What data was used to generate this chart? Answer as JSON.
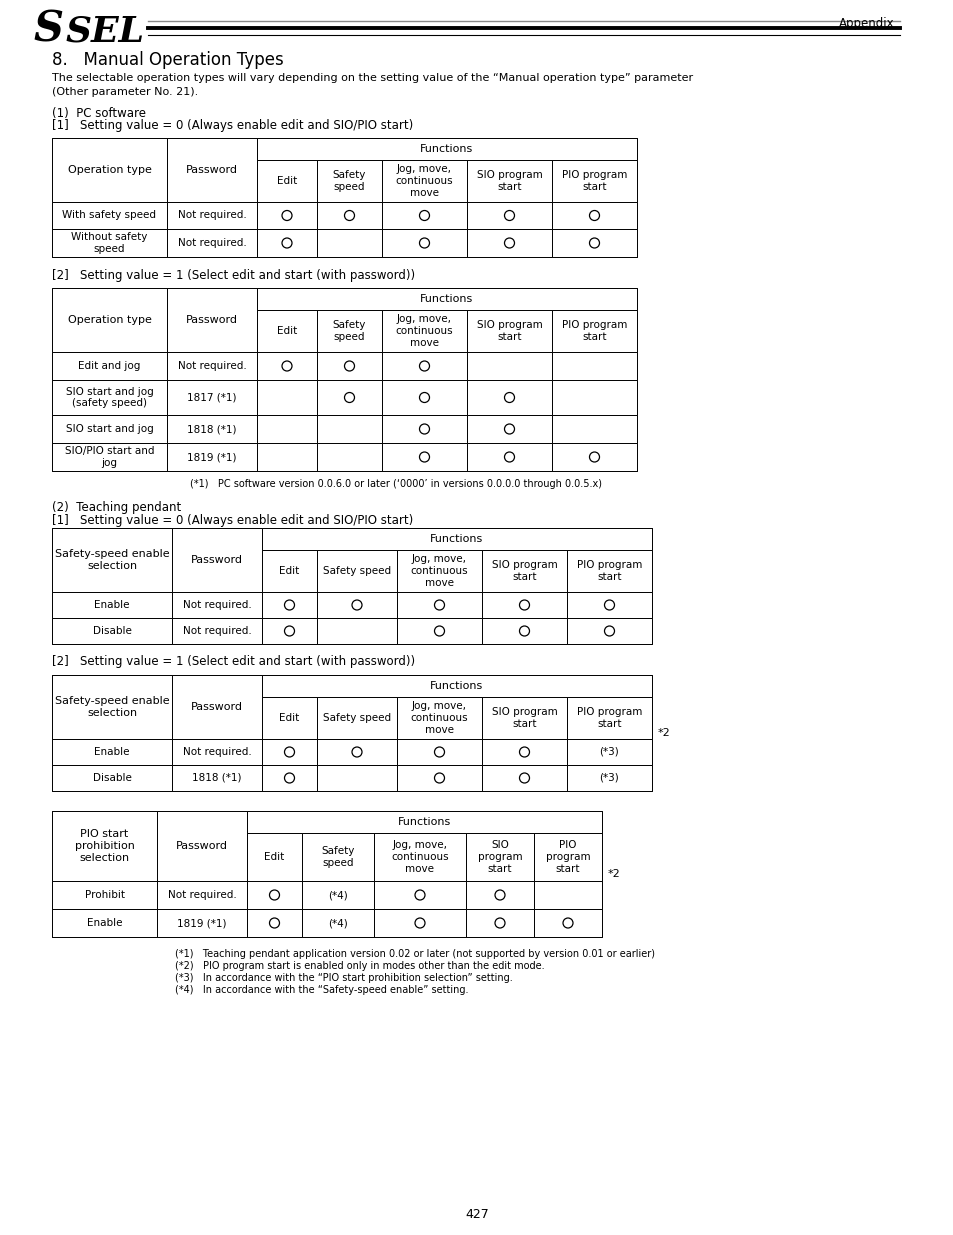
{
  "page_num": "427",
  "header_text": "Appendix",
  "title": "8.   Manual Operation Types",
  "intro_text": "The selectable operation types will vary depending on the setting value of the “Manual operation type” parameter\n(Other parameter No. 21).",
  "section1_title": "(1)  PC software",
  "section1_sub1": "[1]   Setting value = 0 (Always enable edit and SIO/PIO start)",
  "section1_sub2": "[2]   Setting value = 1 (Select edit and start (with password))",
  "section2_title": "(2)  Teaching pendant",
  "section2_sub1": "[1]   Setting value = 0 (Always enable edit and SIO/PIO start)",
  "section2_sub2": "[2]   Setting value = 1 (Select edit and start (with password))",
  "footnote1": "(*1)   PC software version 0.0.6.0 or later (‘0000’ in versions 0.0.0.0 through 0.0.5.x)",
  "footnotes_bottom": [
    "(*1)   Teaching pendant application version 0.02 or later (not supported by version 0.01 or earlier)",
    "(*2)   PIO program start is enabled only in modes other than the edit mode.",
    "(*3)   In accordance with the “PIO start prohibition selection” setting.",
    "(*4)   In accordance with the “Safety-speed enable” setting."
  ]
}
